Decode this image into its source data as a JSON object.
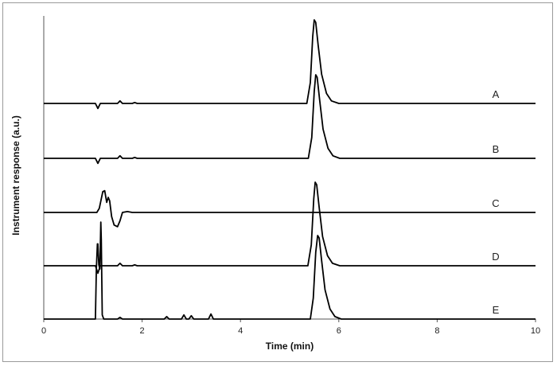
{
  "chart_data": {
    "type": "line",
    "title": "",
    "xlabel": "Time (min)",
    "ylabel": "Instrument response (a.u.)",
    "xlim": [
      0,
      10
    ],
    "x_ticks": [
      "0",
      "2",
      "4",
      "6",
      "8",
      "10"
    ],
    "x_tick_values": [
      0,
      2,
      4,
      6,
      8,
      10
    ],
    "grid": false,
    "legend": "none",
    "line_color": "#000000",
    "series": [
      {
        "name": "A",
        "points": [
          [
            0,
            0
          ],
          [
            1.05,
            0
          ],
          [
            1.1,
            -0.06
          ],
          [
            1.15,
            0
          ],
          [
            1.5,
            0
          ],
          [
            1.55,
            0.03
          ],
          [
            1.6,
            0
          ],
          [
            1.8,
            0
          ],
          [
            1.85,
            0.01
          ],
          [
            1.9,
            0
          ],
          [
            5.35,
            0
          ],
          [
            5.42,
            0.25
          ],
          [
            5.47,
            0.8
          ],
          [
            5.5,
            1.0
          ],
          [
            5.53,
            0.97
          ],
          [
            5.58,
            0.7
          ],
          [
            5.65,
            0.35
          ],
          [
            5.75,
            0.12
          ],
          [
            5.85,
            0.03
          ],
          [
            6.0,
            0
          ],
          [
            10,
            0
          ]
        ]
      },
      {
        "name": "B",
        "points": [
          [
            0,
            0
          ],
          [
            1.05,
            0
          ],
          [
            1.1,
            -0.06
          ],
          [
            1.15,
            0
          ],
          [
            1.5,
            0
          ],
          [
            1.55,
            0.03
          ],
          [
            1.6,
            0
          ],
          [
            1.8,
            0
          ],
          [
            1.85,
            0.01
          ],
          [
            1.9,
            0
          ],
          [
            5.38,
            0
          ],
          [
            5.45,
            0.25
          ],
          [
            5.5,
            0.8
          ],
          [
            5.53,
            1.0
          ],
          [
            5.56,
            0.97
          ],
          [
            5.61,
            0.7
          ],
          [
            5.68,
            0.35
          ],
          [
            5.78,
            0.12
          ],
          [
            5.88,
            0.03
          ],
          [
            6.02,
            0
          ],
          [
            10,
            0
          ]
        ]
      },
      {
        "name": "C",
        "points": [
          [
            0,
            0
          ],
          [
            1.08,
            0
          ],
          [
            1.13,
            0.05
          ],
          [
            1.2,
            0.25
          ],
          [
            1.24,
            0.26
          ],
          [
            1.28,
            0.12
          ],
          [
            1.31,
            0.18
          ],
          [
            1.34,
            0.14
          ],
          [
            1.38,
            -0.05
          ],
          [
            1.43,
            -0.15
          ],
          [
            1.5,
            -0.17
          ],
          [
            1.55,
            -0.1
          ],
          [
            1.6,
            0
          ],
          [
            1.7,
            0.01
          ],
          [
            1.8,
            0
          ],
          [
            10,
            0
          ]
        ]
      },
      {
        "name": "D",
        "points": [
          [
            0,
            0
          ],
          [
            1.05,
            0
          ],
          [
            1.1,
            -0.09
          ],
          [
            1.15,
            0
          ],
          [
            1.5,
            0
          ],
          [
            1.55,
            0.03
          ],
          [
            1.6,
            0
          ],
          [
            1.8,
            0
          ],
          [
            1.85,
            0.01
          ],
          [
            1.9,
            0
          ],
          [
            5.37,
            0
          ],
          [
            5.44,
            0.25
          ],
          [
            5.49,
            0.8
          ],
          [
            5.52,
            1.0
          ],
          [
            5.55,
            0.97
          ],
          [
            5.6,
            0.7
          ],
          [
            5.67,
            0.35
          ],
          [
            5.77,
            0.12
          ],
          [
            5.87,
            0.03
          ],
          [
            6.02,
            0
          ],
          [
            10,
            0
          ]
        ]
      },
      {
        "name": "E",
        "points": [
          [
            0,
            0
          ],
          [
            1.05,
            0
          ],
          [
            1.07,
            0.6
          ],
          [
            1.09,
            0.9
          ],
          [
            1.1,
            0.9
          ],
          [
            1.12,
            0.65
          ],
          [
            1.14,
            0.6
          ],
          [
            1.15,
            0.88
          ],
          [
            1.16,
            1.16
          ],
          [
            1.17,
            0.95
          ],
          [
            1.19,
            0.05
          ],
          [
            1.22,
            0
          ],
          [
            1.5,
            0
          ],
          [
            1.55,
            0.02
          ],
          [
            1.6,
            0
          ],
          [
            2.45,
            0
          ],
          [
            2.5,
            0.03
          ],
          [
            2.55,
            0
          ],
          [
            2.8,
            0
          ],
          [
            2.85,
            0.05
          ],
          [
            2.9,
            0
          ],
          [
            2.95,
            0
          ],
          [
            3.0,
            0.04
          ],
          [
            3.05,
            0
          ],
          [
            3.35,
            0
          ],
          [
            3.4,
            0.06
          ],
          [
            3.45,
            0
          ],
          [
            5.42,
            0
          ],
          [
            5.48,
            0.25
          ],
          [
            5.53,
            0.8
          ],
          [
            5.57,
            1.0
          ],
          [
            5.6,
            0.97
          ],
          [
            5.65,
            0.7
          ],
          [
            5.72,
            0.35
          ],
          [
            5.82,
            0.12
          ],
          [
            5.92,
            0.03
          ],
          [
            6.05,
            0
          ],
          [
            10,
            0
          ]
        ]
      }
    ]
  }
}
